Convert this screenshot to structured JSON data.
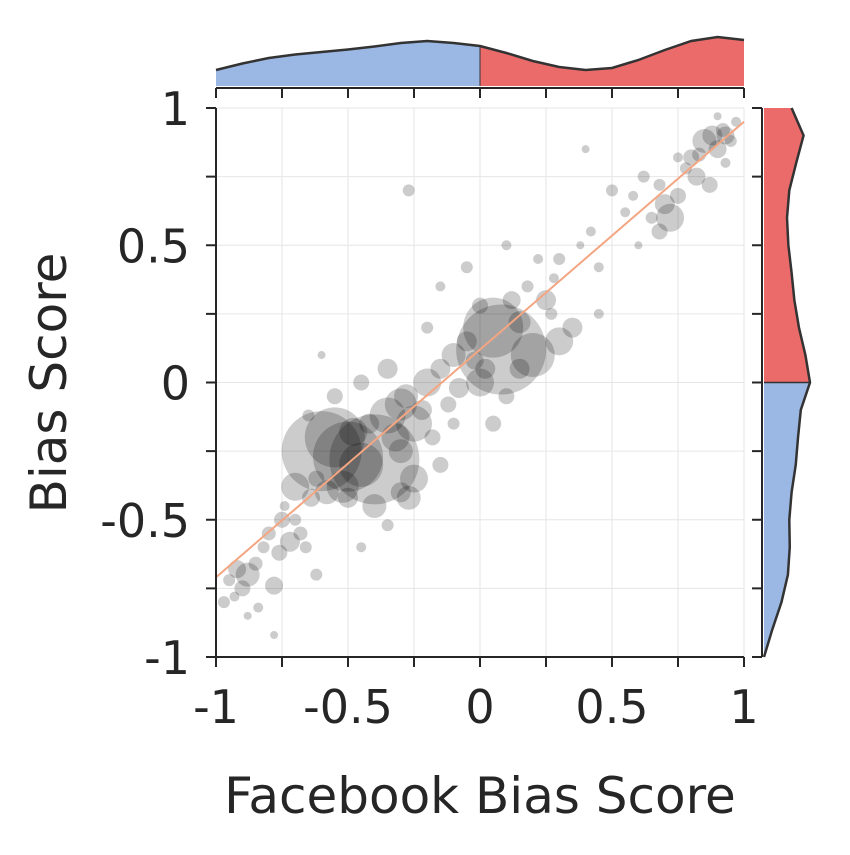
{
  "chart_data": {
    "type": "scatter",
    "title": "",
    "xlabel": "Facebook Bias Score",
    "ylabel": "Bias Score",
    "xlim": [
      -1,
      1
    ],
    "ylim": [
      -1,
      1
    ],
    "xticks": [
      -1,
      -0.5,
      0,
      0.5,
      1
    ],
    "xtick_labels": [
      "-1",
      "-0.5",
      "0",
      "0.5",
      "1"
    ],
    "yticks": [
      -1,
      -0.5,
      0,
      0.5,
      1
    ],
    "ytick_labels": [
      "-1",
      "-0.5",
      "0",
      "0.5",
      "1"
    ],
    "grid": true,
    "marker_color": "#000000",
    "marker_opacity": 0.2,
    "trend_line": {
      "color": "#f4a582",
      "x": [
        -1,
        1
      ],
      "y": [
        -0.71,
        0.95
      ]
    },
    "marginal_x": {
      "type": "density",
      "negative_color": "#9bb7e4",
      "positive_color": "#eb6b6b",
      "x": [
        -1,
        -0.9,
        -0.8,
        -0.7,
        -0.6,
        -0.5,
        -0.4,
        -0.3,
        -0.2,
        -0.1,
        0,
        0.1,
        0.2,
        0.3,
        0.4,
        0.5,
        0.6,
        0.7,
        0.8,
        0.9,
        1
      ],
      "density": [
        0.32,
        0.45,
        0.56,
        0.63,
        0.68,
        0.73,
        0.79,
        0.86,
        0.9,
        0.86,
        0.8,
        0.66,
        0.5,
        0.38,
        0.32,
        0.36,
        0.52,
        0.72,
        0.9,
        0.98,
        0.92
      ]
    },
    "marginal_y": {
      "type": "density",
      "negative_color": "#9bb7e4",
      "positive_color": "#eb6b6b",
      "y": [
        -1,
        -0.9,
        -0.8,
        -0.7,
        -0.6,
        -0.5,
        -0.4,
        -0.3,
        -0.2,
        -0.1,
        0,
        0.1,
        0.2,
        0.3,
        0.4,
        0.5,
        0.6,
        0.7,
        0.8,
        0.9,
        1
      ],
      "density": [
        0.0,
        0.18,
        0.38,
        0.52,
        0.56,
        0.55,
        0.6,
        0.69,
        0.74,
        0.8,
        1.0,
        0.9,
        0.76,
        0.66,
        0.6,
        0.53,
        0.5,
        0.55,
        0.7,
        0.86,
        0.6
      ]
    },
    "points": [
      {
        "x": -0.95,
        "y": -0.72,
        "s": 6
      },
      {
        "x": -0.92,
        "y": -0.68,
        "s": 9
      },
      {
        "x": -0.88,
        "y": -0.7,
        "s": 12
      },
      {
        "x": -0.9,
        "y": -0.75,
        "s": 8
      },
      {
        "x": -0.85,
        "y": -0.66,
        "s": 7
      },
      {
        "x": -0.93,
        "y": -0.78,
        "s": 5
      },
      {
        "x": -0.97,
        "y": -0.8,
        "s": 6
      },
      {
        "x": -0.82,
        "y": -0.6,
        "s": 6
      },
      {
        "x": -0.8,
        "y": -0.55,
        "s": 7
      },
      {
        "x": -0.84,
        "y": -0.82,
        "s": 5
      },
      {
        "x": -0.78,
        "y": -0.74,
        "s": 9
      },
      {
        "x": -0.88,
        "y": -0.85,
        "s": 4
      },
      {
        "x": -0.76,
        "y": -0.62,
        "s": 8
      },
      {
        "x": -0.72,
        "y": -0.58,
        "s": 10
      },
      {
        "x": -0.7,
        "y": -0.5,
        "s": 6
      },
      {
        "x": -0.74,
        "y": -0.45,
        "s": 5
      },
      {
        "x": -0.68,
        "y": -0.55,
        "s": 7
      },
      {
        "x": -0.66,
        "y": -0.6,
        "s": 6
      },
      {
        "x": -0.7,
        "y": -0.38,
        "s": 14
      },
      {
        "x": -0.64,
        "y": -0.42,
        "s": 9
      },
      {
        "x": -0.62,
        "y": -0.35,
        "s": 8
      },
      {
        "x": -0.6,
        "y": -0.25,
        "s": 40
      },
      {
        "x": -0.55,
        "y": -0.2,
        "s": 30
      },
      {
        "x": -0.5,
        "y": -0.27,
        "s": 35
      },
      {
        "x": -0.58,
        "y": -0.4,
        "s": 12
      },
      {
        "x": -0.52,
        "y": -0.38,
        "s": 16
      },
      {
        "x": -0.5,
        "y": -0.42,
        "s": 10
      },
      {
        "x": -0.45,
        "y": -0.3,
        "s": 22
      },
      {
        "x": -0.48,
        "y": -0.18,
        "s": 14
      },
      {
        "x": -0.42,
        "y": -0.15,
        "s": 10
      },
      {
        "x": -0.4,
        "y": -0.28,
        "s": 45
      },
      {
        "x": -0.35,
        "y": -0.12,
        "s": 18
      },
      {
        "x": -0.32,
        "y": -0.2,
        "s": 14
      },
      {
        "x": -0.3,
        "y": -0.25,
        "s": 12
      },
      {
        "x": -0.28,
        "y": -0.05,
        "s": 12
      },
      {
        "x": -0.25,
        "y": -0.15,
        "s": 18
      },
      {
        "x": -0.3,
        "y": -0.4,
        "s": 10
      },
      {
        "x": -0.27,
        "y": -0.42,
        "s": 12
      },
      {
        "x": -0.35,
        "y": -0.52,
        "s": 6
      },
      {
        "x": -0.22,
        "y": -0.1,
        "s": 10
      },
      {
        "x": -0.2,
        "y": 0.0,
        "s": 14
      },
      {
        "x": -0.18,
        "y": -0.2,
        "s": 8
      },
      {
        "x": -0.15,
        "y": 0.05,
        "s": 10
      },
      {
        "x": -0.12,
        "y": -0.08,
        "s": 8
      },
      {
        "x": -0.1,
        "y": 0.1,
        "s": 12
      },
      {
        "x": -0.08,
        "y": -0.02,
        "s": 10
      },
      {
        "x": -0.05,
        "y": 0.15,
        "s": 10
      },
      {
        "x": -0.02,
        "y": 0.08,
        "s": 9
      },
      {
        "x": 0.0,
        "y": 0.0,
        "s": 14
      },
      {
        "x": 0.02,
        "y": 0.05,
        "s": 10
      },
      {
        "x": 0.05,
        "y": 0.2,
        "s": 30
      },
      {
        "x": 0.08,
        "y": 0.12,
        "s": 45
      },
      {
        "x": 0.1,
        "y": -0.05,
        "s": 8
      },
      {
        "x": 0.12,
        "y": 0.3,
        "s": 9
      },
      {
        "x": 0.15,
        "y": 0.22,
        "s": 11
      },
      {
        "x": 0.18,
        "y": 0.35,
        "s": 6
      },
      {
        "x": 0.2,
        "y": 0.1,
        "s": 22
      },
      {
        "x": 0.22,
        "y": 0.45,
        "s": 5
      },
      {
        "x": 0.25,
        "y": 0.3,
        "s": 10
      },
      {
        "x": 0.28,
        "y": 0.38,
        "s": 5
      },
      {
        "x": 0.3,
        "y": 0.45,
        "s": 6
      },
      {
        "x": 0.35,
        "y": 0.2,
        "s": 10
      },
      {
        "x": 0.38,
        "y": 0.5,
        "s": 4
      },
      {
        "x": 0.42,
        "y": 0.55,
        "s": 5
      },
      {
        "x": 0.45,
        "y": 0.42,
        "s": 5
      },
      {
        "x": 0.5,
        "y": 0.7,
        "s": 6
      },
      {
        "x": 0.55,
        "y": 0.62,
        "s": 5
      },
      {
        "x": 0.58,
        "y": 0.68,
        "s": 5
      },
      {
        "x": 0.62,
        "y": 0.75,
        "s": 6
      },
      {
        "x": 0.65,
        "y": 0.6,
        "s": 6
      },
      {
        "x": 0.68,
        "y": 0.55,
        "s": 8
      },
      {
        "x": 0.7,
        "y": 0.65,
        "s": 10
      },
      {
        "x": 0.72,
        "y": 0.6,
        "s": 14
      },
      {
        "x": 0.75,
        "y": 0.68,
        "s": 8
      },
      {
        "x": 0.78,
        "y": 0.78,
        "s": 6
      },
      {
        "x": 0.8,
        "y": 0.82,
        "s": 8
      },
      {
        "x": 0.82,
        "y": 0.75,
        "s": 9
      },
      {
        "x": 0.85,
        "y": 0.88,
        "s": 12
      },
      {
        "x": 0.88,
        "y": 0.9,
        "s": 10
      },
      {
        "x": 0.9,
        "y": 0.85,
        "s": 9
      },
      {
        "x": 0.87,
        "y": 0.72,
        "s": 8
      },
      {
        "x": 0.92,
        "y": 0.92,
        "s": 7
      },
      {
        "x": 0.95,
        "y": 0.88,
        "s": 6
      },
      {
        "x": 0.93,
        "y": 0.8,
        "s": 5
      },
      {
        "x": 0.97,
        "y": 0.95,
        "s": 5
      },
      {
        "x": 0.9,
        "y": 0.97,
        "s": 4
      },
      {
        "x": 0.83,
        "y": 0.83,
        "s": 7
      },
      {
        "x": 0.6,
        "y": 0.5,
        "s": 4
      },
      {
        "x": 0.4,
        "y": 0.85,
        "s": 4
      },
      {
        "x": -0.27,
        "y": 0.7,
        "s": 6
      },
      {
        "x": -0.6,
        "y": 0.1,
        "s": 4
      },
      {
        "x": -0.78,
        "y": -0.92,
        "s": 4
      },
      {
        "x": -0.45,
        "y": 0.0,
        "s": 8
      },
      {
        "x": -0.65,
        "y": -0.12,
        "s": 6
      },
      {
        "x": -0.2,
        "y": 0.2,
        "s": 6
      },
      {
        "x": -0.05,
        "y": 0.42,
        "s": 6
      },
      {
        "x": 0.1,
        "y": 0.5,
        "s": 5
      },
      {
        "x": -0.15,
        "y": 0.35,
        "s": 5
      },
      {
        "x": -0.35,
        "y": 0.05,
        "s": 10
      },
      {
        "x": -0.4,
        "y": -0.45,
        "s": 12
      },
      {
        "x": -0.25,
        "y": -0.35,
        "s": 14
      },
      {
        "x": -0.15,
        "y": -0.3,
        "s": 8
      },
      {
        "x": 0.05,
        "y": -0.15,
        "s": 8
      },
      {
        "x": 0.15,
        "y": 0.05,
        "s": 10
      },
      {
        "x": -0.55,
        "y": -0.05,
        "s": 8
      },
      {
        "x": -0.75,
        "y": -0.5,
        "s": 8
      },
      {
        "x": -0.62,
        "y": -0.7,
        "s": 6
      },
      {
        "x": -0.45,
        "y": -0.6,
        "s": 5
      },
      {
        "x": -0.3,
        "y": -0.08,
        "s": 16
      },
      {
        "x": -0.1,
        "y": -0.15,
        "s": 6
      },
      {
        "x": 0.0,
        "y": 0.28,
        "s": 8
      },
      {
        "x": 0.3,
        "y": 0.15,
        "s": 14
      },
      {
        "x": 0.27,
        "y": 0.25,
        "s": 6
      },
      {
        "x": 0.45,
        "y": 0.25,
        "s": 5
      },
      {
        "x": 0.75,
        "y": 0.82,
        "s": 5
      },
      {
        "x": 0.68,
        "y": 0.72,
        "s": 6
      },
      {
        "x": 0.93,
        "y": 0.9,
        "s": 9
      }
    ]
  }
}
